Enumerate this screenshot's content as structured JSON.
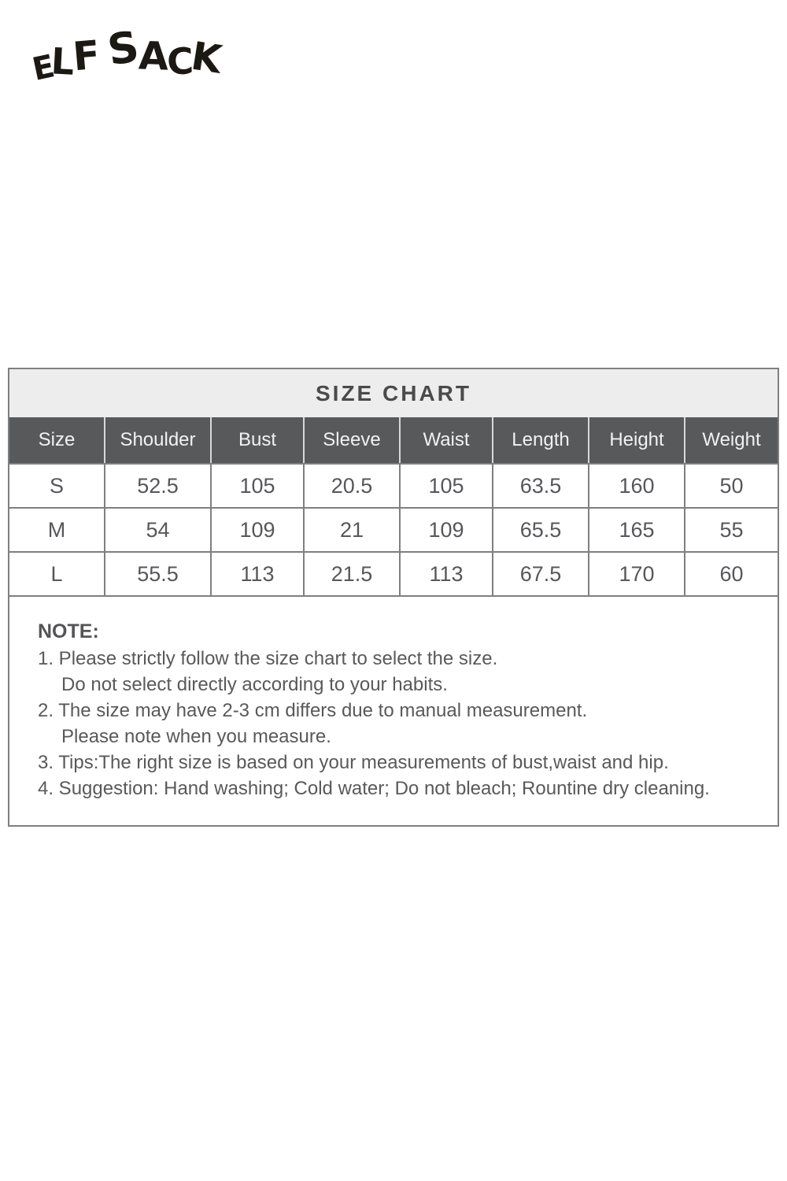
{
  "logo": {
    "text": "ELF SACK",
    "letters": [
      "E",
      "L",
      "F",
      "S",
      "A",
      "C",
      "K"
    ]
  },
  "size_chart": {
    "title": "SIZE CHART",
    "columns": [
      "Size",
      "Shoulder",
      "Bust",
      "Sleeve",
      "Waist",
      "Length",
      "Height",
      "Weight"
    ],
    "rows": [
      [
        "S",
        "52.5",
        "105",
        "20.5",
        "105",
        "63.5",
        "160",
        "50"
      ],
      [
        "M",
        "54",
        "109",
        "21",
        "109",
        "65.5",
        "165",
        "55"
      ],
      [
        "L",
        "55.5",
        "113",
        "21.5",
        "113",
        "67.5",
        "170",
        "60"
      ]
    ]
  },
  "note": {
    "heading": "NOTE:",
    "lines": [
      "1. Please strictly follow the size chart to select the size.",
      "Do not select directly according to your habits.",
      "2. The size may have 2-3 cm differs due to manual measurement.",
      "Please note when you measure.",
      "3. Tips:The right size is based on your measurements of bust,waist and hip.",
      "4. Suggestion: Hand washing; Cold water; Do not bleach; Rountine dry cleaning."
    ]
  },
  "colors": {
    "header_bg": "#58595b",
    "header_text": "#f2f2f2",
    "title_bg": "#ededed",
    "grid_border": "#7f7f7f",
    "body_text": "#56575a",
    "note_text": "#595959",
    "logo_color": "#1c1813"
  }
}
